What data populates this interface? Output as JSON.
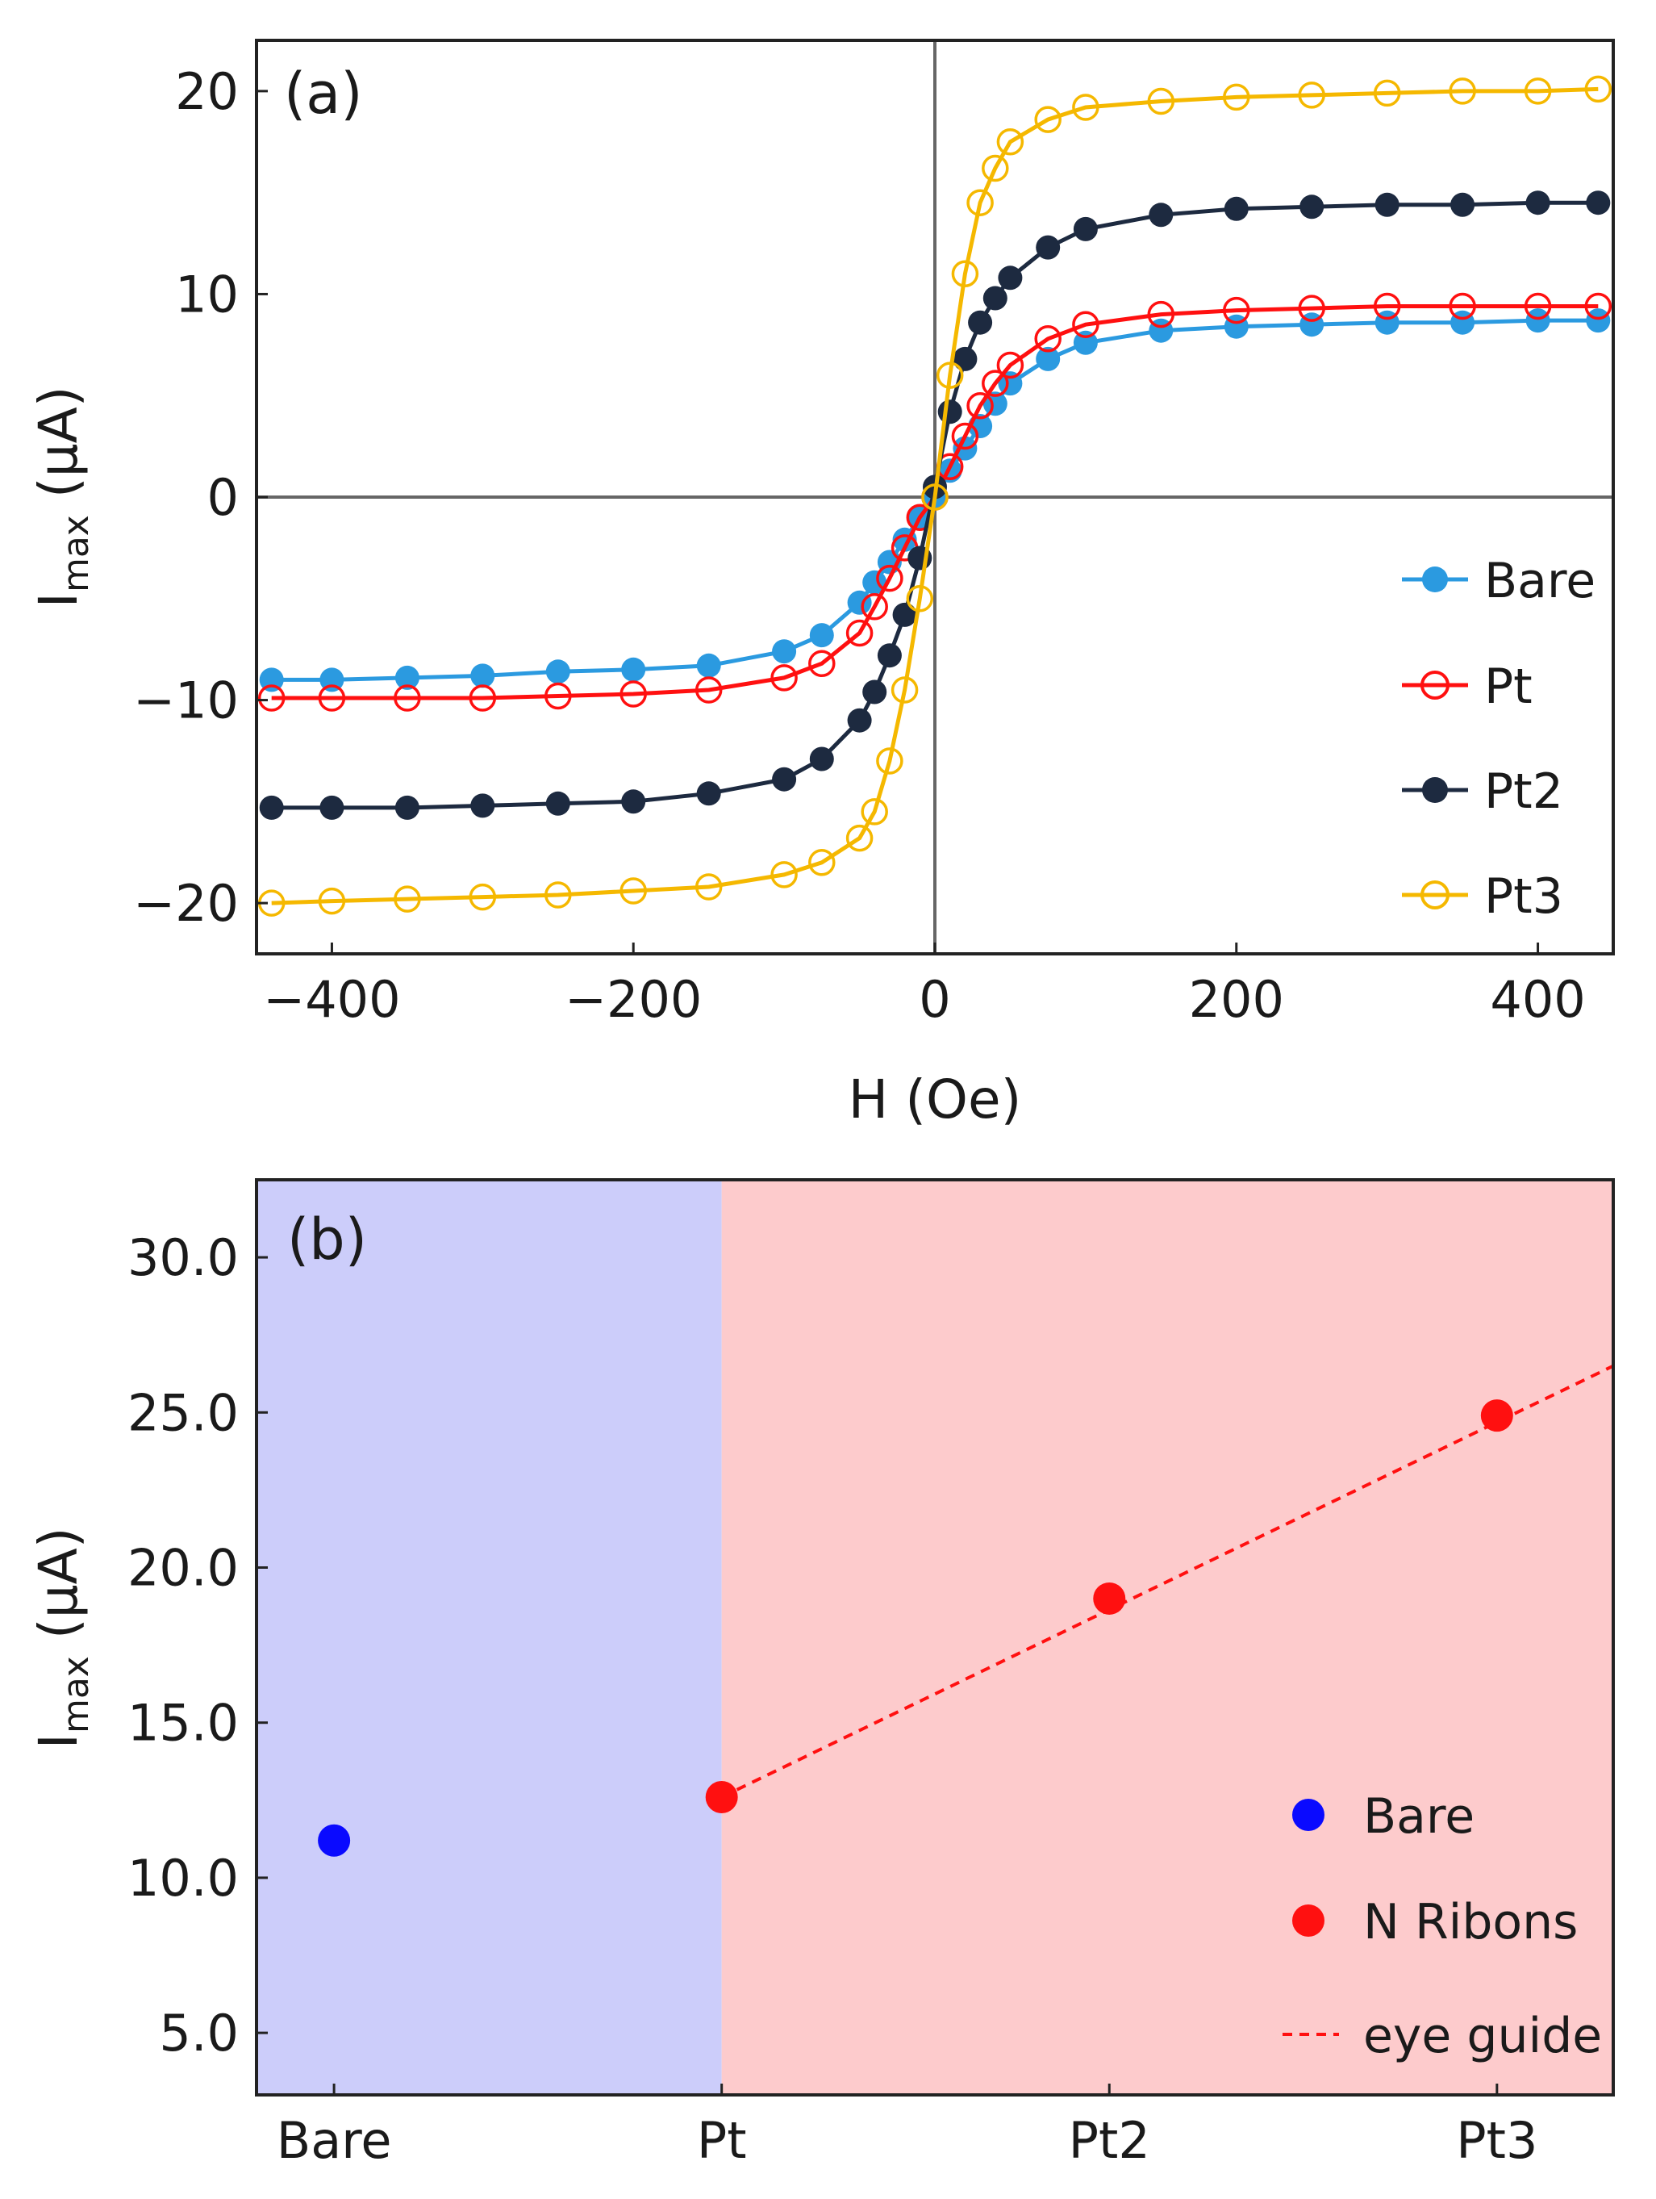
{
  "chart_data": [
    {
      "type": "scatter",
      "panel_label": "(a)",
      "xlabel": "H (Oe)",
      "ylabel_main": "I",
      "ylabel_sub": "max",
      "ylabel_unit": " (μA)",
      "xlim": [
        -450,
        450
      ],
      "ylim": [
        -22.5,
        22.5
      ],
      "x_ticks": [
        -400,
        -200,
        0,
        200,
        400
      ],
      "x_tick_labels": [
        "−400",
        "−200",
        "0",
        "200",
        "400"
      ],
      "y_ticks": [
        -20,
        -10,
        0,
        10,
        20
      ],
      "y_tick_labels": [
        "−20",
        "−10",
        "0",
        "10",
        "20"
      ],
      "legend_position": "right",
      "series": [
        {
          "name": "Bare",
          "color": "#2b9ae0",
          "marker": "filled",
          "x": [
            -440,
            -400,
            -350,
            -300,
            -250,
            -200,
            -150,
            -100,
            -75,
            -50,
            -40,
            -30,
            -20,
            -10,
            0,
            10,
            20,
            30,
            40,
            50,
            75,
            100,
            150,
            200,
            250,
            300,
            350,
            400,
            440
          ],
          "y": [
            -9.0,
            -9.0,
            -8.9,
            -8.8,
            -8.6,
            -8.5,
            -8.3,
            -7.6,
            -6.8,
            -5.2,
            -4.2,
            -3.2,
            -2.1,
            -1.0,
            0.0,
            1.3,
            2.4,
            3.5,
            4.6,
            5.6,
            6.8,
            7.6,
            8.2,
            8.4,
            8.5,
            8.6,
            8.6,
            8.7,
            8.7
          ]
        },
        {
          "name": "Pt",
          "color": "#ff1010",
          "marker": "open",
          "x": [
            -440,
            -400,
            -350,
            -300,
            -250,
            -200,
            -150,
            -100,
            -75,
            -50,
            -40,
            -30,
            -20,
            -10,
            0,
            10,
            20,
            30,
            40,
            50,
            75,
            100,
            150,
            200,
            250,
            300,
            350,
            400,
            440
          ],
          "y": [
            -9.9,
            -9.9,
            -9.9,
            -9.9,
            -9.8,
            -9.7,
            -9.5,
            -8.9,
            -8.2,
            -6.7,
            -5.4,
            -4.0,
            -2.5,
            -1.0,
            0.0,
            1.5,
            3.0,
            4.5,
            5.6,
            6.5,
            7.8,
            8.5,
            9.0,
            9.2,
            9.3,
            9.4,
            9.4,
            9.4,
            9.4
          ]
        },
        {
          "name": "Pt2",
          "color": "#1d2a40",
          "marker": "filled",
          "x": [
            -440,
            -400,
            -350,
            -300,
            -250,
            -200,
            -150,
            -100,
            -75,
            -50,
            -40,
            -30,
            -20,
            -10,
            0,
            10,
            20,
            30,
            40,
            50,
            75,
            100,
            150,
            200,
            250,
            300,
            350,
            400,
            440
          ],
          "y": [
            -15.3,
            -15.3,
            -15.3,
            -15.2,
            -15.1,
            -15.0,
            -14.6,
            -13.9,
            -12.9,
            -11.0,
            -9.6,
            -7.8,
            -5.8,
            -3.0,
            0.5,
            4.2,
            6.8,
            8.6,
            9.8,
            10.8,
            12.3,
            13.2,
            13.9,
            14.2,
            14.3,
            14.4,
            14.4,
            14.5,
            14.5
          ]
        },
        {
          "name": "Pt3",
          "color": "#f5b800",
          "marker": "open",
          "x": [
            -440,
            -400,
            -350,
            -300,
            -250,
            -200,
            -150,
            -100,
            -75,
            -50,
            -40,
            -30,
            -20,
            -10,
            0,
            10,
            20,
            30,
            40,
            50,
            75,
            100,
            150,
            200,
            250,
            300,
            350,
            400,
            440
          ],
          "y": [
            -20.0,
            -19.9,
            -19.8,
            -19.7,
            -19.6,
            -19.4,
            -19.2,
            -18.6,
            -18.0,
            -16.8,
            -15.5,
            -13.0,
            -9.5,
            -5.0,
            0.0,
            6.0,
            11.0,
            14.5,
            16.2,
            17.5,
            18.6,
            19.2,
            19.5,
            19.7,
            19.8,
            19.9,
            20.0,
            20.0,
            20.1
          ]
        }
      ]
    },
    {
      "type": "scatter",
      "panel_label": "(b)",
      "xlabel": "",
      "ylabel_main": "I",
      "ylabel_sub": "max",
      "ylabel_unit": " (μA)",
      "categories": [
        "Bare",
        "Pt",
        "Pt2",
        "Pt3"
      ],
      "ylim": [
        3.0,
        32.5
      ],
      "y_ticks": [
        5,
        10,
        15,
        20,
        25,
        30
      ],
      "y_tick_labels": [
        "5.0",
        "10.0",
        "15.0",
        "20.0",
        "25.0",
        "30.0"
      ],
      "legend_position": "bottom-right",
      "regions": [
        {
          "name": "bare-region",
          "color": "#cccdfa",
          "from": -0.2,
          "to": 1
        },
        {
          "name": "ribbons-region",
          "color": "#fdcbcc",
          "from": 1,
          "to": 3.3
        }
      ],
      "series": [
        {
          "name": "Bare",
          "color": "#0a0aff",
          "categories": [
            "Bare"
          ],
          "values": [
            11.2
          ]
        },
        {
          "name": "N Ribons",
          "color": "#ff1010",
          "categories": [
            "Pt",
            "Pt2",
            "Pt3"
          ],
          "values": [
            12.6,
            19.0,
            24.9
          ]
        },
        {
          "name": "eye guide",
          "color": "#ff1010",
          "style": "dashed",
          "x": [
            1,
            3.3
          ],
          "y": [
            12.6,
            26.5
          ]
        }
      ]
    }
  ]
}
